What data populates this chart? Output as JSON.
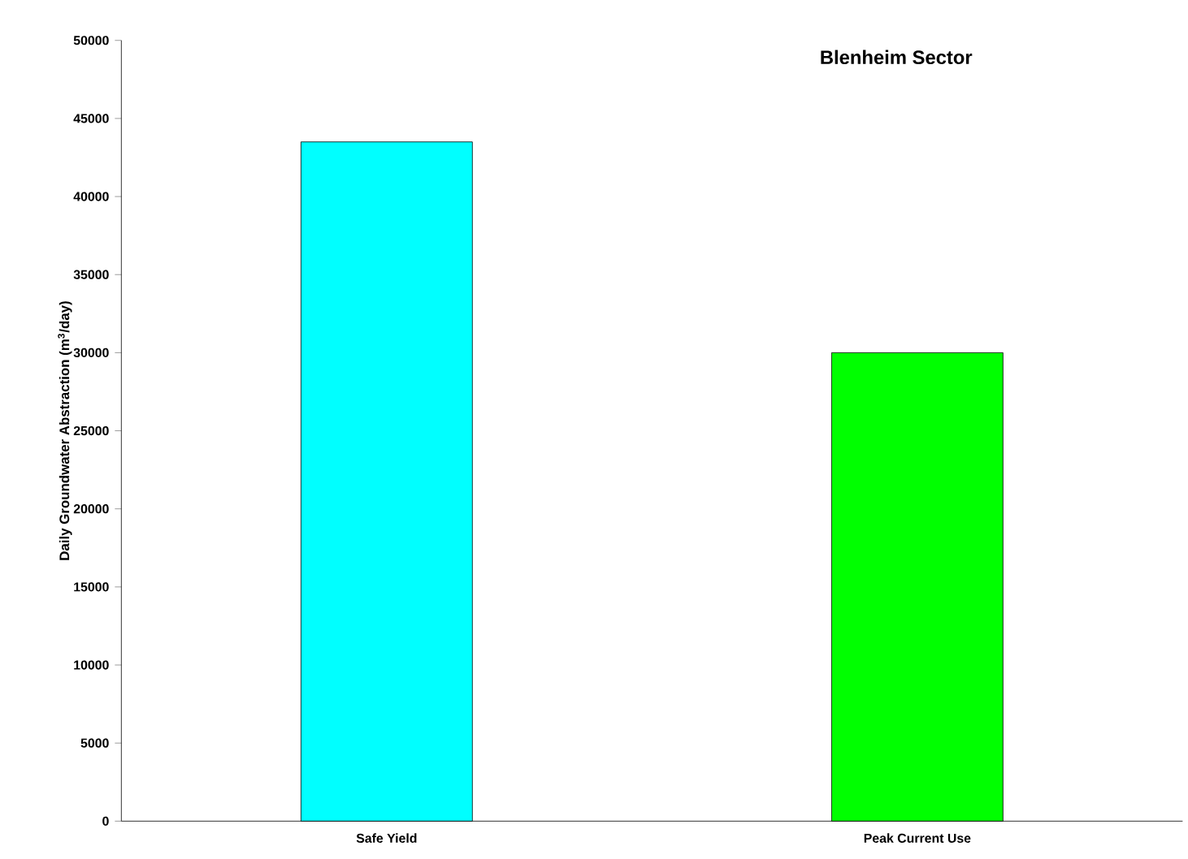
{
  "chart_data": {
    "type": "bar",
    "title": "Blenheim Sector",
    "ylabel": "Daily Groundwater Abstraction (m$^{3}$/day)",
    "categories": [
      "Safe Yield",
      "Peak Current Use"
    ],
    "values": [
      43500,
      30000
    ],
    "colors": [
      "#00ffff",
      "#00ff00"
    ],
    "ylim": [
      0,
      50000
    ],
    "yticks": [
      0,
      5000,
      10000,
      15000,
      20000,
      25000,
      30000,
      35000,
      40000,
      45000,
      50000
    ]
  }
}
